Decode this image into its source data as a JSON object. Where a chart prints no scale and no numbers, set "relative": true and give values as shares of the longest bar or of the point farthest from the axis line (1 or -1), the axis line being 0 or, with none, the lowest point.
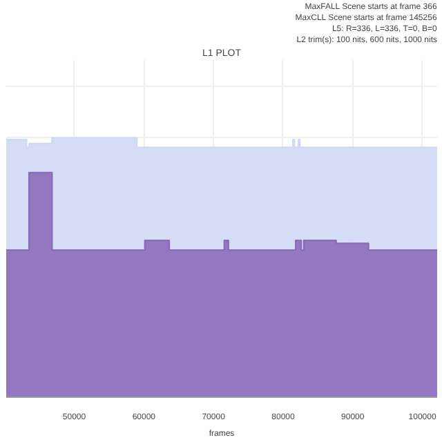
{
  "chart_data": {
    "type": "area",
    "title": "L1 PLOT",
    "xlabel": "frames",
    "relative": true,
    "annotations": [
      "MaxFALL Scene starts at frame 366",
      "MaxCLL Scene starts at frame 145256",
      "L5: R=336, L=336, T=0, B=0",
      "L2 trim(s): 100 nits, 600 nits, 1000 nits"
    ],
    "xlim": [
      40232,
      102120
    ],
    "xticks": [
      50000,
      60000,
      70000,
      80000,
      90000,
      100000
    ],
    "grid": true,
    "series": [
      {
        "color": "#cfd8f5",
        "x": [
          40232,
          43133,
          43133,
          43520,
          43520,
          46808,
          46808,
          58990,
          58990,
          81424,
          81424,
          81617,
          81617,
          82197,
          82197,
          82390,
          82390,
          102120
        ],
        "values": [
          0.993,
          0.993,
          0.963,
          0.963,
          0.978,
          0.978,
          1,
          1,
          0.963,
          0.963,
          0.993,
          0.993,
          0.963,
          0.963,
          0.993,
          0.993,
          0.963,
          0.963
        ]
      },
      {
        "color": "#8c6bba",
        "x": [
          40232,
          43520,
          43520,
          46808,
          46808,
          60150,
          60150,
          63632,
          63632,
          71560,
          71560,
          72140,
          72140,
          81810,
          81810,
          82583,
          82583,
          82970,
          82970,
          87610,
          87610,
          92254,
          92254,
          102120
        ],
        "values": [
          0.567,
          0.567,
          0.866,
          0.866,
          0.567,
          0.567,
          0.604,
          0.604,
          0.567,
          0.567,
          0.604,
          0.604,
          0.567,
          0.567,
          0.604,
          0.604,
          0.567,
          0.567,
          0.604,
          0.604,
          0.593,
          0.593,
          0.567,
          0.567
        ]
      }
    ]
  }
}
